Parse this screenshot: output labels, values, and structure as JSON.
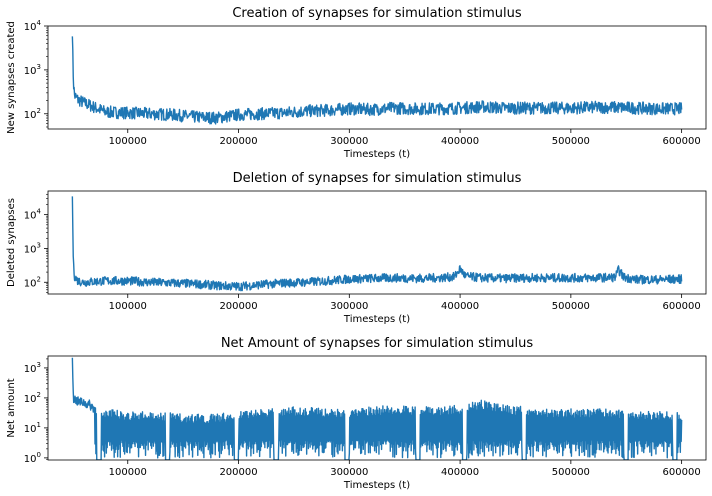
{
  "chart_data": [
    {
      "type": "line",
      "title": "Creation of synapses for simulation stimulus",
      "xlabel": "Timesteps (t)",
      "ylabel": "New synapses created",
      "yscale": "log",
      "xlim": [
        28000,
        622000
      ],
      "ylim": [
        45,
        10000
      ],
      "color": "#1f77b4",
      "x_ticks": [
        100000,
        200000,
        300000,
        400000,
        500000,
        600000
      ],
      "x_tick_labels": [
        "100000",
        "200000",
        "300000",
        "400000",
        "500000",
        "600000"
      ],
      "y_ticks": [
        100,
        1000,
        10000
      ],
      "y_tick_base": "10",
      "y_tick_exponents": [
        "2",
        "3",
        "4"
      ],
      "series": [
        {
          "x": [
            50000,
            50500,
            51000,
            52000,
            55000,
            60000,
            70000,
            80000,
            100000,
            120000,
            140000,
            160000,
            180000,
            200000,
            220000,
            240000,
            260000,
            280000,
            300000,
            320000,
            340000,
            360000,
            380000,
            400000,
            420000,
            440000,
            460000,
            480000,
            500000,
            520000,
            540000,
            560000,
            580000,
            600000
          ],
          "y": [
            8000,
            1500,
            500,
            260,
            210,
            180,
            140,
            110,
            105,
            100,
            95,
            85,
            80,
            95,
            100,
            105,
            115,
            120,
            130,
            125,
            135,
            130,
            130,
            135,
            145,
            135,
            135,
            135,
            135,
            140,
            140,
            135,
            130,
            130
          ],
          "noise": 0.14
        }
      ]
    },
    {
      "type": "line",
      "title": "Deletion of synapses for simulation stimulus",
      "xlabel": "Timesteps (t)",
      "ylabel": "Deleted synapses",
      "yscale": "log",
      "xlim": [
        28000,
        622000
      ],
      "ylim": [
        45,
        50000
      ],
      "color": "#1f77b4",
      "x_ticks": [
        100000,
        200000,
        300000,
        400000,
        500000,
        600000
      ],
      "x_tick_labels": [
        "100000",
        "200000",
        "300000",
        "400000",
        "500000",
        "600000"
      ],
      "y_ticks": [
        100,
        1000,
        10000
      ],
      "y_tick_base": "10",
      "y_tick_exponents": [
        "2",
        "3",
        "4"
      ],
      "series": [
        {
          "x": [
            50000,
            50500,
            51000,
            52000,
            55000,
            60000,
            80000,
            100000,
            120000,
            140000,
            160000,
            180000,
            200000,
            220000,
            240000,
            260000,
            280000,
            300000,
            320000,
            340000,
            360000,
            380000,
            395000,
            400000,
            405000,
            420000,
            440000,
            460000,
            480000,
            500000,
            520000,
            540000,
            543000,
            548000,
            560000,
            580000,
            600000
          ],
          "y": [
            35000,
            2000,
            300,
            150,
            110,
            100,
            110,
            110,
            100,
            95,
            90,
            80,
            75,
            85,
            95,
            100,
            110,
            125,
            130,
            135,
            130,
            135,
            145,
            250,
            150,
            135,
            130,
            135,
            135,
            135,
            135,
            140,
            230,
            140,
            120,
            120,
            125
          ],
          "noise": 0.13
        }
      ]
    },
    {
      "type": "line",
      "title": "Net Amount of synapses for simulation stimulus",
      "xlabel": "Timesteps (t)",
      "ylabel": "Net amount",
      "yscale": "log",
      "xlim": [
        28000,
        622000
      ],
      "ylim": [
        0.85,
        2500
      ],
      "color": "#1f77b4",
      "x_ticks": [
        100000,
        200000,
        300000,
        400000,
        500000,
        600000
      ],
      "x_tick_labels": [
        "100000",
        "200000",
        "300000",
        "400000",
        "500000",
        "600000"
      ],
      "y_ticks": [
        1,
        10,
        100,
        1000
      ],
      "y_tick_base": "10",
      "y_tick_exponents": [
        "0",
        "1",
        "2",
        "3"
      ],
      "series": [
        {
          "x": [
            50000,
            50500,
            51000,
            52000,
            55000,
            60000,
            65000,
            70000,
            80000,
            100000,
            120000,
            140000,
            160000,
            180000,
            200000,
            220000,
            240000,
            260000,
            280000,
            300000,
            320000,
            340000,
            360000,
            380000,
            400000,
            420000,
            440000,
            460000,
            480000,
            500000,
            520000,
            540000,
            560000,
            580000,
            600000
          ],
          "y": [
            1800,
            400,
            100,
            90,
            75,
            70,
            60,
            45,
            30,
            25,
            25,
            22,
            20,
            20,
            25,
            30,
            35,
            35,
            30,
            30,
            35,
            40,
            35,
            35,
            40,
            60,
            40,
            35,
            30,
            30,
            30,
            30,
            25,
            25,
            25
          ],
          "noise": 0.16,
          "oscillating": true,
          "gap_regions": [
            [
              72000,
              76000
            ],
            [
              134000,
              138000
            ],
            [
              196000,
              200000
            ],
            [
              232000,
              236000
            ],
            [
              296000,
              300000
            ],
            [
              360000,
              364000
            ],
            [
              402000,
              406000
            ],
            [
              456000,
              460000
            ],
            [
              548000,
              552000
            ],
            [
              592000,
              596000
            ]
          ]
        }
      ]
    }
  ]
}
